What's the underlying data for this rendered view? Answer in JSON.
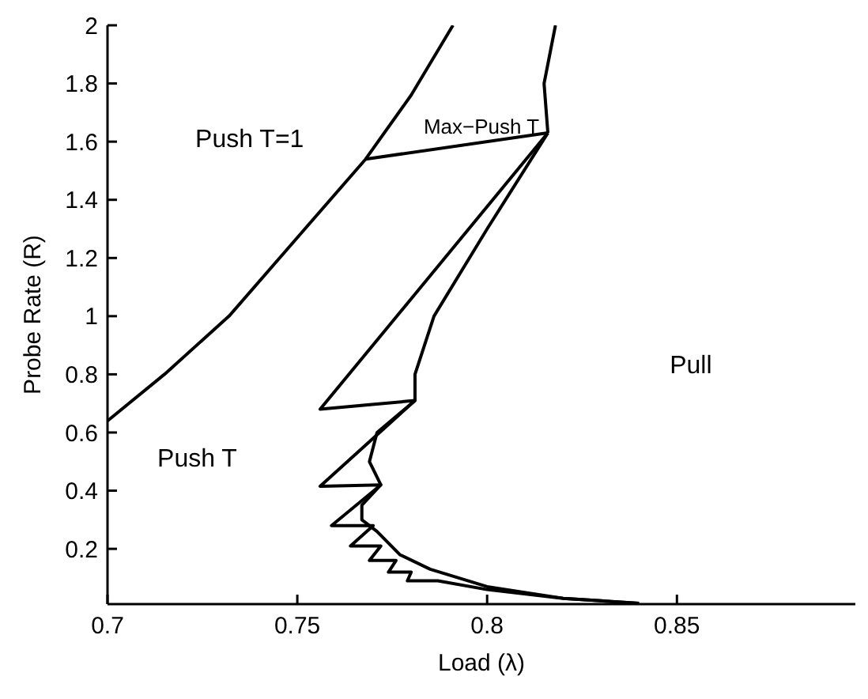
{
  "chart_data": {
    "type": "line",
    "xlabel": "Load (λ)",
    "ylabel": "Probe Rate (R)",
    "xlim": [
      0.7,
      0.897
    ],
    "xticks": [
      0.7,
      0.75,
      0.8,
      0.85
    ],
    "ylim": [
      0.01,
      2
    ],
    "yticks": [
      0.2,
      0.4,
      0.6,
      0.8,
      1,
      1.2,
      1.4,
      1.6,
      1.8,
      2
    ],
    "grid": false,
    "marker": "none",
    "line_style": "solid",
    "series": [
      {
        "color": "#000000",
        "x": [
          0.7,
          0.715,
          0.732,
          0.75,
          0.768,
          0.78,
          0.791
        ],
        "values": [
          0.64,
          0.8,
          1.0,
          1.27,
          1.54,
          1.76,
          2.0
        ]
      },
      {
        "color": "#000000",
        "x": [
          0.768,
          0.816
        ],
        "values": [
          1.54,
          1.63
        ]
      },
      {
        "color": "#000000",
        "x": [
          0.818,
          0.815,
          0.816
        ],
        "values": [
          2.0,
          1.8,
          1.63
        ]
      },
      {
        "color": "#000000",
        "x": [
          0.816,
          0.756,
          0.781,
          0.756,
          0.772,
          0.759,
          0.77,
          0.764,
          0.772,
          0.769,
          0.776,
          0.774,
          0.78,
          0.779,
          0.787,
          0.8,
          0.82,
          0.84
        ],
        "values": [
          1.63,
          0.68,
          0.71,
          0.415,
          0.42,
          0.28,
          0.28,
          0.21,
          0.21,
          0.16,
          0.16,
          0.12,
          0.12,
          0.09,
          0.09,
          0.06,
          0.03,
          0.013
        ]
      },
      {
        "color": "#000000",
        "x": [
          0.816,
          0.8,
          0.786,
          0.781,
          0.781,
          0.771,
          0.769,
          0.772,
          0.767,
          0.767,
          0.771,
          0.777,
          0.785,
          0.8,
          0.82,
          0.84
        ],
        "values": [
          1.63,
          1.3,
          1.0,
          0.8,
          0.71,
          0.6,
          0.5,
          0.42,
          0.35,
          0.3,
          0.26,
          0.18,
          0.13,
          0.07,
          0.03,
          0.013
        ]
      }
    ],
    "annotations": [
      "Push T=1",
      "Max−Push T",
      "Push T",
      "Pull"
    ]
  }
}
